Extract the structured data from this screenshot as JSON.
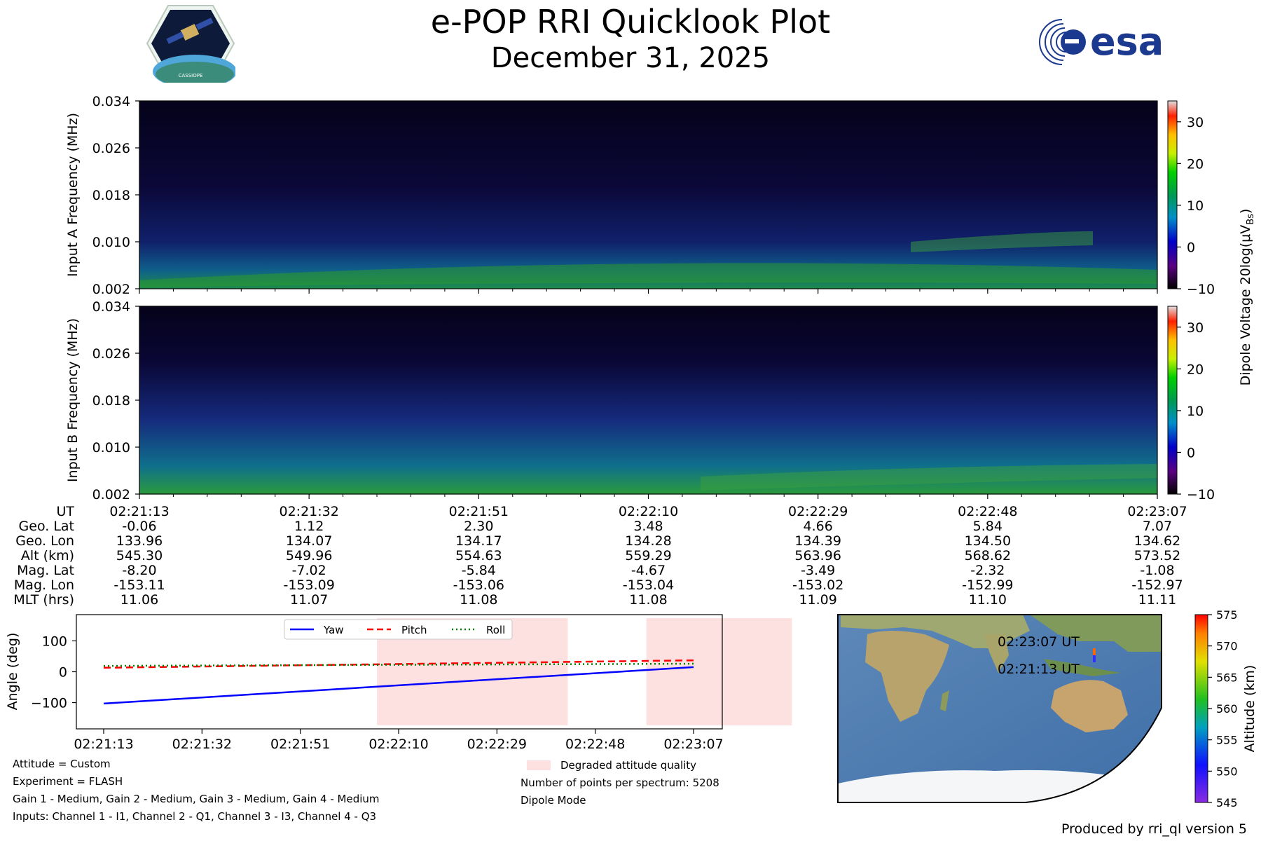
{
  "title": "e-POP RRI Quicklook Plot",
  "date": "December 31, 2025",
  "logo_left_text": "CASSIOPE",
  "logo_right_text": "esa",
  "spectrograms": [
    {
      "ylabel": "Input A Frequency (MHz)",
      "yticks": [
        "0.034",
        "0.026",
        "0.018",
        "0.010",
        "0.002"
      ]
    },
    {
      "ylabel": "Input B Frequency (MHz)",
      "yticks": [
        "0.034",
        "0.026",
        "0.018",
        "0.010",
        "0.002"
      ]
    }
  ],
  "spectrogram_colorbar": {
    "label": "Dipole Voltage 20log(μV",
    "label_sub": "Bs",
    "label_end": ")",
    "ticks": [
      "30",
      "20",
      "10",
      "0",
      "−10"
    ],
    "vmin": -10,
    "vmax": 35
  },
  "ephemeris": {
    "labels": [
      "UT",
      "Geo. Lat",
      "Geo. Lon",
      "Alt (km)",
      "Mag. Lat",
      "Mag. Lon",
      "MLT (hrs)"
    ],
    "columns": [
      [
        "02:21:13",
        "-0.06",
        "133.96",
        "545.30",
        "-8.20",
        "-153.11",
        "11.06"
      ],
      [
        "02:21:32",
        "1.12",
        "134.07",
        "549.96",
        "-7.02",
        "-153.09",
        "11.07"
      ],
      [
        "02:21:51",
        "2.30",
        "134.17",
        "554.63",
        "-5.84",
        "-153.06",
        "11.08"
      ],
      [
        "02:22:10",
        "3.48",
        "134.28",
        "559.29",
        "-4.67",
        "-153.04",
        "11.08"
      ],
      [
        "02:22:29",
        "4.66",
        "134.39",
        "563.96",
        "-3.49",
        "-153.02",
        "11.09"
      ],
      [
        "02:22:48",
        "5.84",
        "134.50",
        "568.62",
        "-2.32",
        "-152.99",
        "11.10"
      ],
      [
        "02:23:07",
        "7.07",
        "134.62",
        "573.52",
        "-1.08",
        "-152.97",
        "11.11"
      ]
    ]
  },
  "chart_data": {
    "type": "line",
    "title": "",
    "xlabel": "",
    "ylabel": "Angle (deg)",
    "x": [
      "02:21:13",
      "02:21:32",
      "02:21:51",
      "02:22:10",
      "02:22:29",
      "02:22:48",
      "02:23:07"
    ],
    "yticks": [
      "100",
      "0",
      "−100"
    ],
    "ylim": [
      -185,
      185
    ],
    "series": [
      {
        "name": "Yaw",
        "color": "#0000ff",
        "style": "solid",
        "start": -103,
        "end": 15
      },
      {
        "name": "Pitch",
        "color": "#ff0000",
        "style": "dashed",
        "start": 13,
        "end": 37
      },
      {
        "name": "Roll",
        "color": "#008000",
        "style": "dotted",
        "start": 19,
        "end": 26
      }
    ],
    "degraded_intervals_index": [
      [
        2.78,
        4.72
      ],
      [
        5.52,
        7.0
      ]
    ]
  },
  "notes_left": [
    "Attitude = Custom",
    "Experiment = FLASH",
    "Gain 1 - Medium, Gain 2 - Medium, Gain 3 - Medium, Gain 4 - Medium",
    "Inputs: Channel 1 - I1, Channel 2 - Q1, Channel 3 - I3, Channel 4 - Q3"
  ],
  "notes_right": {
    "degraded_label": "Degraded attitude quality",
    "points": "Number of points per spectrum: 5208",
    "mode": "Dipole Mode"
  },
  "map": {
    "label_end": "02:23:07 UT",
    "label_start": "02:21:13 UT",
    "colorbar_label": "Altitude (km)",
    "colorbar_ticks": [
      "575",
      "570",
      "565",
      "560",
      "555",
      "550",
      "545"
    ]
  },
  "footer": "Produced by rri_ql version 5",
  "colors": {
    "accent_blue": "#0000ff",
    "accent_red": "#ff0000",
    "accent_green": "#008000",
    "degraded": "#fde0e0"
  }
}
